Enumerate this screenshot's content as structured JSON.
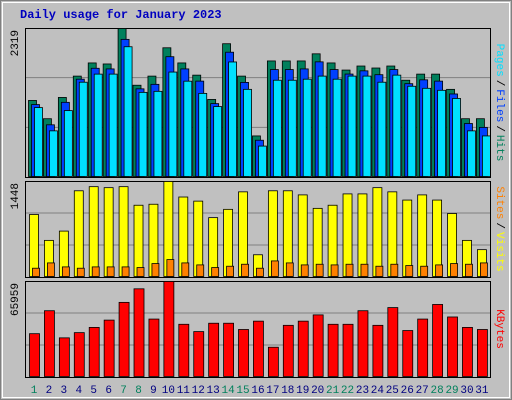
{
  "chart_data": [
    {
      "type": "bar",
      "title": "Daily usage for January 2023",
      "ylim": [
        0,
        2319
      ],
      "yticks": [
        2319
      ],
      "legend_separator": "/",
      "series": [
        {
          "name": "Hits",
          "color": "#00805c",
          "values": [
            1199,
            915,
            1246,
            1578,
            1783,
            1767,
            2319,
            1436,
            1578,
            2019,
            1783,
            1593,
            1215,
            2082,
            1578,
            647,
            1814,
            1814,
            1814,
            1925,
            1783,
            1672,
            1735,
            1704,
            1735,
            1514,
            1609,
            1609,
            1372,
            915,
            915
          ]
        },
        {
          "name": "Files",
          "color": "#0040ff",
          "values": [
            1135,
            820,
            1170,
            1530,
            1700,
            1690,
            2150,
            1380,
            1450,
            1880,
            1690,
            1500,
            1150,
            1950,
            1480,
            580,
            1680,
            1680,
            1690,
            1800,
            1680,
            1610,
            1660,
            1600,
            1680,
            1460,
            1520,
            1500,
            1300,
            840,
            780
          ]
        },
        {
          "name": "Pages",
          "color": "#00e0ff",
          "values": [
            1088,
            726,
            1041,
            1483,
            1609,
            1609,
            2035,
            1325,
            1341,
            1641,
            1499,
            1309,
            1104,
            1798,
            1372,
            489,
            1514,
            1514,
            1530,
            1578,
            1530,
            1578,
            1578,
            1483,
            1593,
            1420,
            1388,
            1357,
            1230,
            726,
            647
          ]
        }
      ]
    },
    {
      "type": "bar",
      "ylim": [
        0,
        1448
      ],
      "yticks": [
        1448
      ],
      "legend_separator": "/",
      "series": [
        {
          "name": "Visits",
          "color": "#ffff00",
          "values": [
            950,
            560,
            700,
            1308,
            1370,
            1355,
            1370,
            1090,
            1105,
            1448,
            1214,
            1152,
            903,
            1028,
            1292,
            343,
            1308,
            1308,
            1246,
            1043,
            1090,
            1261,
            1261,
            1355,
            1292,
            1168,
            1246,
            1168,
            965,
            560,
            420
          ]
        },
        {
          "name": "Sites",
          "color": "#ff8000",
          "values": [
            140,
            220,
            160,
            140,
            160,
            160,
            160,
            150,
            210,
            270,
            220,
            190,
            150,
            170,
            200,
            140,
            250,
            220,
            190,
            200,
            190,
            200,
            200,
            170,
            200,
            180,
            170,
            190,
            210,
            200,
            220
          ]
        }
      ]
    },
    {
      "type": "bar",
      "ylim": [
        0,
        65959
      ],
      "yticks": [
        65959
      ],
      "categories": [
        "1",
        "2",
        "3",
        "4",
        "5",
        "6",
        "7",
        "8",
        "9",
        "10",
        "11",
        "12",
        "13",
        "14",
        "15",
        "16",
        "17",
        "18",
        "19",
        "20",
        "21",
        "22",
        "23",
        "24",
        "25",
        "26",
        "27",
        "28",
        "29",
        "30",
        "31"
      ],
      "category_colors": [
        "#00805c",
        "#000080",
        "#000080",
        "#000080",
        "#000080",
        "#000080",
        "#00805c",
        "#00805c",
        "#000080",
        "#000080",
        "#000080",
        "#000080",
        "#000080",
        "#00805c",
        "#00805c",
        "#000080",
        "#000080",
        "#000080",
        "#000080",
        "#000080",
        "#00805c",
        "#00805c",
        "#000080",
        "#000080",
        "#000080",
        "#000080",
        "#000080",
        "#00805c",
        "#00805c",
        "#000080",
        "#000080"
      ],
      "series": [
        {
          "name": "KBytes",
          "color": "#ff0000",
          "values": [
            30111,
            45884,
            27244,
            30828,
            34413,
            39432,
            51620,
            60940,
            40149,
            65959,
            36564,
            31545,
            37281,
            37281,
            32980,
            38715,
            20791,
            35847,
            38715,
            43017,
            36564,
            36564,
            45884,
            35847,
            48035,
            32263,
            40149,
            50186,
            41583,
            34413,
            32980
          ]
        }
      ]
    }
  ]
}
